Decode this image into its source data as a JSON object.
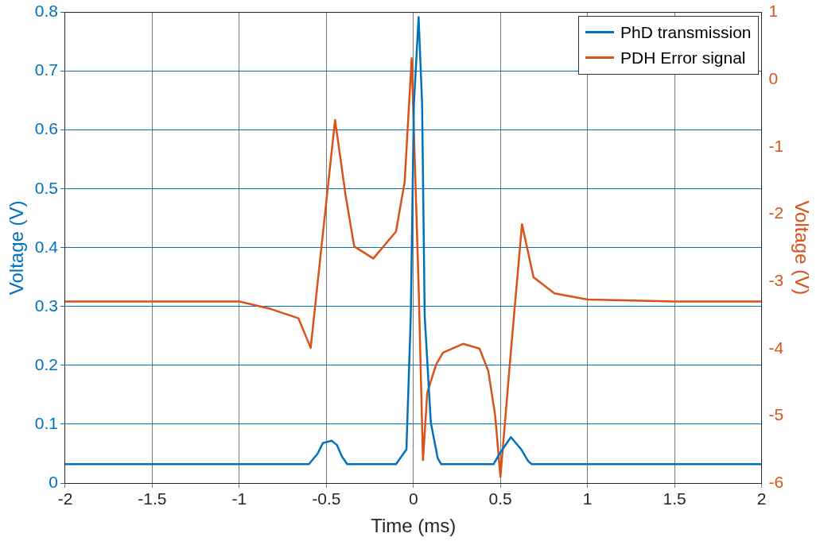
{
  "chart_data": {
    "type": "line",
    "xlabel": "Time (ms)",
    "ylabel": "Voltage (V)",
    "y2label": "Voltage (V)",
    "xlim": [
      -2,
      2
    ],
    "xticks": [
      -2,
      -1.5,
      -1,
      -0.5,
      0,
      0.5,
      1,
      1.5,
      2
    ],
    "ylim": [
      0,
      0.8
    ],
    "yticks": [
      0,
      0.1,
      0.2,
      0.3,
      0.4,
      0.5,
      0.6,
      0.7,
      0.8
    ],
    "y2lim": [
      -6,
      1
    ],
    "y2ticks": [
      -6,
      -5,
      -4,
      -3,
      -2,
      -1,
      0,
      1
    ],
    "grid": true,
    "legend": "top right",
    "marker": "none",
    "line_style": "solid",
    "series": [
      {
        "name": "PhD transmission",
        "color": "#0072bd",
        "x": [
          -2,
          -1.5,
          -1,
          -0.6,
          -0.55,
          -0.52,
          -0.47,
          -0.44,
          -0.41,
          -0.38,
          -0.1,
          -0.04,
          -0.015,
          0.003,
          0.03,
          0.05,
          0.065,
          0.1,
          0.14,
          0.16,
          0.46,
          0.5,
          0.56,
          0.62,
          0.66,
          0.68,
          1,
          1.5,
          2
        ],
        "values": [
          0.032,
          0.032,
          0.032,
          0.032,
          0.05,
          0.068,
          0.072,
          0.065,
          0.045,
          0.032,
          0.032,
          0.057,
          0.284,
          0.645,
          0.792,
          0.645,
          0.284,
          0.103,
          0.042,
          0.032,
          0.032,
          0.052,
          0.078,
          0.057,
          0.037,
          0.032,
          0.032,
          0.032,
          0.032
        ]
      },
      {
        "name": "PDH Error signal",
        "color": "#d95319",
        "axis": "y2",
        "x": [
          -2,
          -1.5,
          -1,
          -0.82,
          -0.66,
          -0.59,
          -0.45,
          -0.39,
          -0.34,
          -0.23,
          -0.1,
          -0.05,
          -0.01,
          0.03,
          0.055,
          0.08,
          0.13,
          0.17,
          0.285,
          0.38,
          0.43,
          0.47,
          0.5,
          0.56,
          0.624,
          0.69,
          0.81,
          1,
          1.5,
          2
        ],
        "values": [
          -3.3,
          -3.3,
          -3.3,
          -3.41,
          -3.55,
          -3.99,
          -0.6,
          -1.71,
          -2.48,
          -2.66,
          -2.26,
          -1.52,
          0.32,
          -3.06,
          -5.66,
          -4.65,
          -4.24,
          -4.06,
          -3.93,
          -4.0,
          -4.33,
          -5.0,
          -5.91,
          -4.04,
          -2.15,
          -2.94,
          -3.18,
          -3.27,
          -3.3,
          -3.3
        ]
      }
    ]
  }
}
